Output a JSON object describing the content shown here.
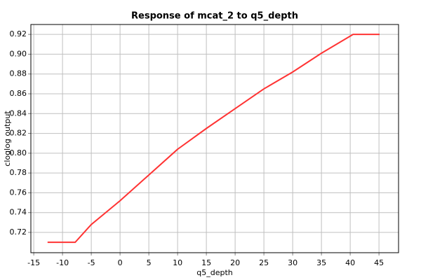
{
  "chart_data": {
    "type": "line",
    "title": "Response of mcat_2 to q5_depth",
    "x_label": "q5_depth",
    "y_label": "cloglog output",
    "x": [
      -12.6,
      -7.8,
      -5,
      0,
      5,
      10,
      15,
      20,
      25,
      30,
      35,
      40.5,
      45.1
    ],
    "values": [
      0.71,
      0.71,
      0.728,
      0.752,
      0.778,
      0.804,
      0.825,
      0.845,
      0.865,
      0.882,
      0.901,
      0.92,
      0.92
    ],
    "color": "#ff3333",
    "xlim": [
      -15.5,
      48.4
    ],
    "ylim": [
      0.6995,
      0.93
    ],
    "xticks": [
      -15,
      -10,
      -5,
      0,
      5,
      10,
      15,
      20,
      25,
      30,
      35,
      40,
      45
    ],
    "yticks": [
      0.72,
      0.74,
      0.76,
      0.78,
      {
        "value": 0.8,
        "label": "0.80"
      },
      0.82,
      0.84,
      0.86,
      0.88,
      {
        "value": 0.9,
        "label": "0.90"
      },
      0.92
    ],
    "grid": true
  }
}
